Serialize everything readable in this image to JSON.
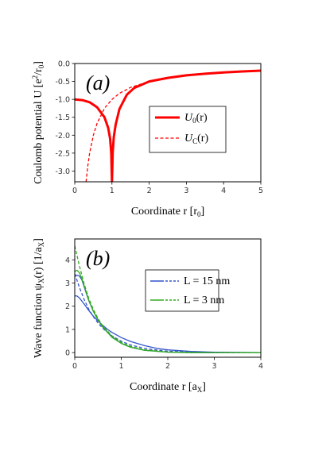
{
  "chart_data": [
    {
      "type": "line",
      "panel_label": "(a)",
      "xlabel": "Coordinate r [r",
      "xlabel_sub": "0",
      "xlabel_end": "]",
      "ylabel": "Coulomb potential U [e",
      "ylabel_sup": "2",
      "ylabel_mid": "/r",
      "ylabel_sub": "0",
      "ylabel_end": "]",
      "xlim": [
        0,
        5
      ],
      "ylim": [
        -3.3,
        0
      ],
      "xticks": [
        "0",
        "1",
        "2",
        "3",
        "4",
        "5"
      ],
      "yticks": [
        "0.0",
        "-0.5",
        "-1.0",
        "-1.5",
        "-2.0",
        "-2.5",
        "-3.0"
      ],
      "legend_position": "center-right",
      "series": [
        {
          "name": "U",
          "name_sub": "0",
          "name_end": "(r)",
          "color": "#ff0000",
          "style": "solid",
          "x": [
            0,
            0.2,
            0.4,
            0.6,
            0.8,
            0.9,
            0.95,
            0.98,
            1.0,
            1.02,
            1.05,
            1.1,
            1.2,
            1.4,
            1.6,
            2.0,
            2.5,
            3.0,
            3.5,
            4.0,
            4.5,
            5.0
          ],
          "y": [
            -1.0,
            -1.02,
            -1.08,
            -1.22,
            -1.5,
            -1.8,
            -2.1,
            -2.5,
            -3.3,
            -2.5,
            -2.05,
            -1.7,
            -1.27,
            -0.87,
            -0.68,
            -0.5,
            -0.4,
            -0.33,
            -0.285,
            -0.25,
            -0.222,
            -0.2
          ]
        },
        {
          "name": "U",
          "name_sub": "C",
          "name_end": "(r)",
          "color": "#ff0000",
          "style": "dashed",
          "x": [
            0.303,
            0.35,
            0.4,
            0.5,
            0.6,
            0.8,
            1.0,
            1.2,
            1.5,
            2.0,
            2.5,
            3.0,
            4.0,
            5.0
          ],
          "y": [
            -3.3,
            -2.857,
            -2.5,
            -2.0,
            -1.667,
            -1.25,
            -1.0,
            -0.833,
            -0.667,
            -0.5,
            -0.4,
            -0.333,
            -0.25,
            -0.2
          ]
        }
      ]
    },
    {
      "type": "line",
      "panel_label": "(b)",
      "xlabel": "Coordinate r [a",
      "xlabel_sub": "X",
      "xlabel_end": "]",
      "ylabel": "Wave  function ψ",
      "ylabel_sub": "X",
      "ylabel_end": "(r) [1/a",
      "ylabel_sub2": "X",
      "ylabel_end2": "]",
      "xlim": [
        0,
        4
      ],
      "ylim": [
        -0.2,
        4.9
      ],
      "xticks": [
        "0",
        "1",
        "2",
        "3",
        "4"
      ],
      "yticks": [
        "0",
        "1",
        "2",
        "3",
        "4"
      ],
      "legend_position": "upper-right",
      "series": [
        {
          "name": "L = 15 nm",
          "legend": true,
          "color": "#3355cc",
          "style": "solid",
          "x": [
            0,
            0.05,
            0.1,
            0.2,
            0.3,
            0.4,
            0.5,
            0.6,
            0.7,
            0.8,
            1.0,
            1.2,
            1.5,
            1.8,
            2.0,
            2.5,
            3.0,
            3.5,
            4.0
          ],
          "y": [
            2.45,
            2.44,
            2.36,
            2.1,
            1.82,
            1.57,
            1.36,
            1.18,
            1.01,
            0.87,
            0.65,
            0.48,
            0.3,
            0.17,
            0.12,
            0.05,
            0.02,
            0.01,
            0.0
          ]
        },
        {
          "color": "#3355cc",
          "style": "dashed",
          "x": [
            0,
            0.1,
            0.2,
            0.3,
            0.4,
            0.5,
            0.6,
            0.8,
            1.0,
            1.2,
            1.5,
            1.8,
            2.0,
            2.5,
            3.0,
            3.5,
            4.0
          ],
          "y": [
            3.4,
            2.82,
            2.3,
            1.88,
            1.55,
            1.28,
            1.05,
            0.72,
            0.49,
            0.33,
            0.18,
            0.1,
            0.06,
            0.02,
            0.01,
            0.0,
            0.0
          ]
        },
        {
          "color": "#3355cc",
          "style": "solid",
          "x": [
            0,
            0.05,
            0.1,
            0.15,
            0.2,
            0.3,
            0.4,
            0.5,
            0.6,
            0.8,
            1.0,
            1.2,
            1.5,
            2.0,
            2.5,
            3.0
          ],
          "y": [
            3.3,
            3.34,
            3.3,
            3.15,
            2.85,
            2.25,
            1.78,
            1.42,
            1.12,
            0.68,
            0.4,
            0.23,
            0.1,
            0.02,
            0.0,
            0.0
          ]
        },
        {
          "name": "L = 3 nm",
          "legend": true,
          "color": "#33aa22",
          "style": "solid",
          "x": [
            0,
            0.05,
            0.1,
            0.15,
            0.2,
            0.3,
            0.4,
            0.5,
            0.6,
            0.8,
            1.0,
            1.2,
            1.5,
            2.0,
            2.5,
            3.0,
            3.5,
            4.0
          ],
          "y": [
            3.5,
            3.55,
            3.45,
            3.2,
            2.9,
            2.27,
            1.78,
            1.4,
            1.1,
            0.66,
            0.4,
            0.23,
            0.1,
            0.02,
            0.0,
            0.0,
            0.0,
            0.0
          ]
        },
        {
          "color": "#33aa22",
          "style": "dashed",
          "x": [
            0,
            0.1,
            0.2,
            0.3,
            0.4,
            0.5,
            0.6,
            0.8,
            1.0,
            1.2,
            1.5,
            2.0,
            2.5,
            3.0,
            4.0
          ],
          "y": [
            4.6,
            3.75,
            2.98,
            2.35,
            1.86,
            1.47,
            1.16,
            0.72,
            0.44,
            0.27,
            0.12,
            0.03,
            0.01,
            0.0,
            0.0
          ]
        }
      ]
    }
  ]
}
